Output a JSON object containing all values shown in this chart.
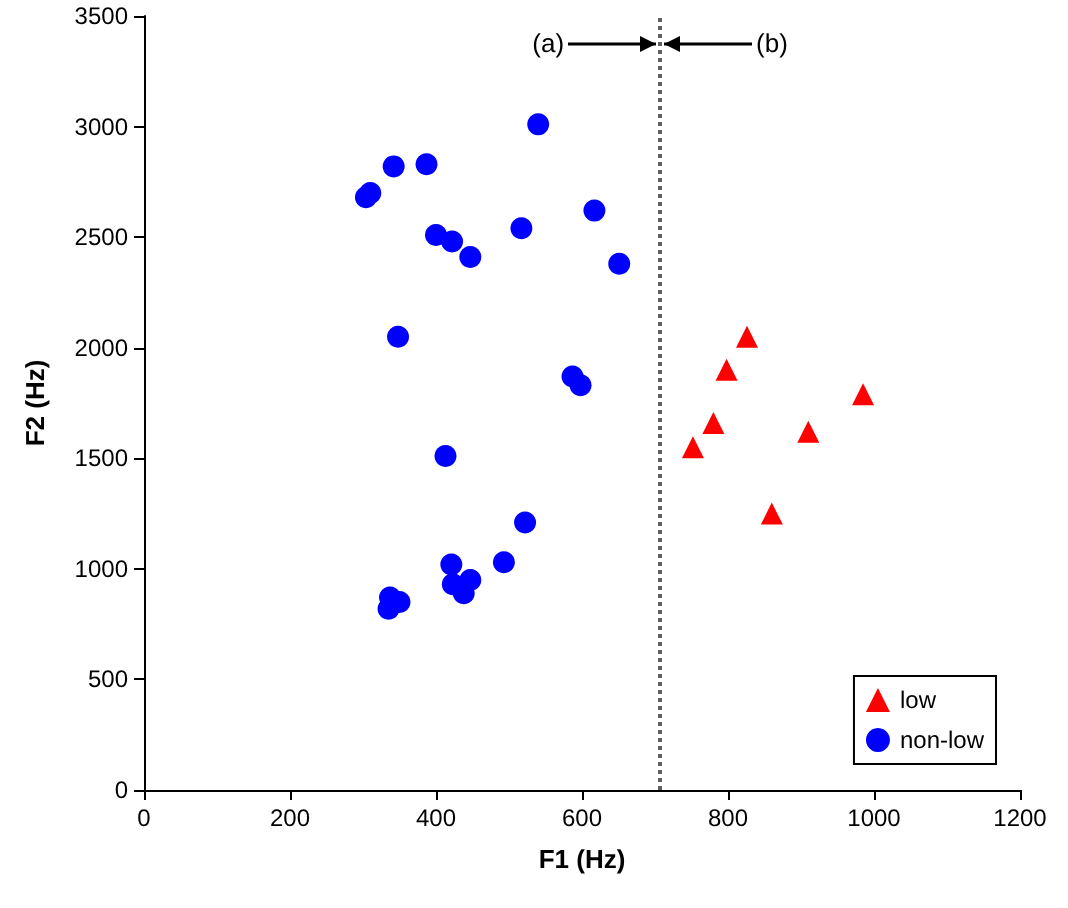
{
  "chart_data": {
    "type": "scatter",
    "xlabel": "F1 (Hz)",
    "ylabel": "F2 (Hz)",
    "xlim": [
      0,
      1200
    ],
    "xticks": [
      0,
      200,
      400,
      600,
      800,
      1000,
      1200
    ],
    "ylim": [
      0,
      3500
    ],
    "yticks": [
      0,
      500,
      1000,
      1500,
      2000,
      2500,
      3000,
      3500
    ],
    "grid": false,
    "legend": "bottom right",
    "series": [
      {
        "name": "low",
        "color": "#ff0000",
        "marker": "triangle",
        "x": [
          752,
          780,
          798,
          826,
          860,
          910,
          985
        ],
        "values": [
          1550,
          1660,
          1900,
          2050,
          1250,
          1620,
          1790
        ]
      },
      {
        "name": "non-low",
        "color": "#0000ff",
        "marker": "circle",
        "x": [
          304,
          310,
          342,
          387,
          540,
          400,
          422,
          447,
          517,
          617,
          651,
          348,
          587,
          598,
          413,
          522,
          493,
          421,
          423,
          438,
          447,
          337,
          335,
          350
        ],
        "values": [
          2680,
          2700,
          2820,
          2830,
          3010,
          2510,
          2480,
          2410,
          2540,
          2620,
          2380,
          2050,
          1870,
          1830,
          1510,
          1210,
          1030,
          1020,
          930,
          890,
          950,
          870,
          820,
          850
        ]
      }
    ],
    "ref_lines": [
      {
        "axis": "x",
        "value": 707,
        "color": "#606060",
        "line_style": "dotted"
      }
    ],
    "annotations": [
      {
        "text": "(a)",
        "x": 707,
        "y": 3370
      },
      {
        "text": "(b)",
        "x": 707,
        "y": 3370
      }
    ]
  }
}
